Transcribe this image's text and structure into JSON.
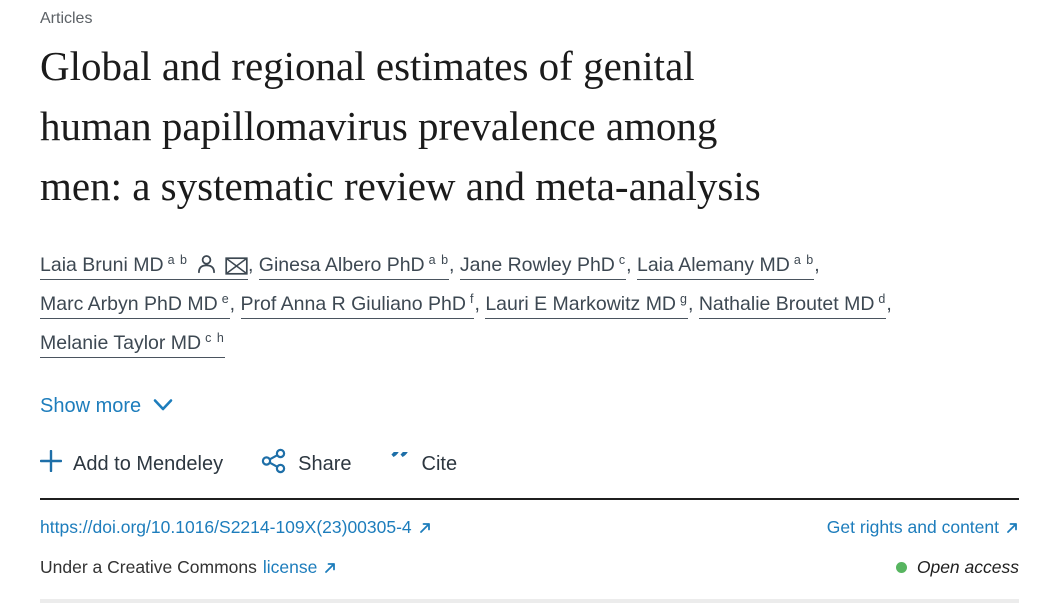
{
  "kicker": "Articles",
  "title": {
    "lines": [
      "Global and regional estimates of genital",
      "human papillomavirus prevalence among",
      "men: a systematic review and meta-analysis"
    ]
  },
  "authors": [
    {
      "name": "Laia Bruni MD",
      "sup": "a b",
      "icons": [
        "person",
        "envelope"
      ]
    },
    {
      "name": "Ginesa Albero PhD",
      "sup": "a b",
      "icons": []
    },
    {
      "name": "Jane Rowley PhD",
      "sup": "c",
      "icons": []
    },
    {
      "name": "Laia Alemany MD",
      "sup": "a b",
      "icons": []
    },
    {
      "name": "Marc Arbyn PhD MD",
      "sup": "e",
      "icons": []
    },
    {
      "name": "Prof Anna R Giuliano PhD",
      "sup": "f",
      "icons": []
    },
    {
      "name": "Lauri E Markowitz MD",
      "sup": "g",
      "icons": []
    },
    {
      "name": "Nathalie Broutet MD",
      "sup": "d",
      "icons": []
    },
    {
      "name": "Melanie Taylor MD",
      "sup": "c h",
      "icons": []
    }
  ],
  "author_separator": ", ",
  "show_more_label": "Show more",
  "actions": {
    "mendeley_label": "Add to Mendeley",
    "share_label": "Share",
    "cite_label": "Cite"
  },
  "doi": {
    "url_text": "https://doi.org/10.1016/S2214-109X(23)00305-4",
    "rights_label": "Get rights and content"
  },
  "license_line": {
    "prefix": "Under a Creative Commons",
    "link_label": "license"
  },
  "open_access_label": "Open access",
  "colors": {
    "link_blue": "#1d7dbc",
    "icon_blue": "#1e6fa8",
    "open_access_green": "#57b560",
    "text_dark": "#212121",
    "author_color": "#3d4852"
  }
}
